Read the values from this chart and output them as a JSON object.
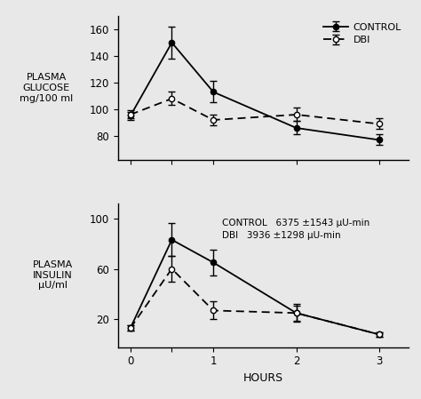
{
  "hours": [
    0,
    0.5,
    1,
    2,
    3
  ],
  "glucose_control_y": [
    95,
    150,
    113,
    86,
    77
  ],
  "glucose_control_err": [
    3,
    12,
    8,
    5,
    4
  ],
  "glucose_dbi_y": [
    96,
    108,
    92,
    96,
    89
  ],
  "glucose_dbi_err": [
    3,
    5,
    4,
    5,
    4
  ],
  "insulin_control_y": [
    13,
    83,
    65,
    25,
    8
  ],
  "insulin_control_err": [
    2,
    13,
    10,
    7,
    2
  ],
  "insulin_dbi_y": [
    13,
    60,
    27,
    25,
    8
  ],
  "insulin_dbi_err": [
    2,
    10,
    7,
    6,
    2
  ],
  "glucose_yticks": [
    80,
    100,
    120,
    140,
    160
  ],
  "glucose_ylim": [
    62,
    170
  ],
  "insulin_yticks": [
    20,
    60,
    100
  ],
  "insulin_ylim": [
    -2,
    112
  ],
  "xticks": [
    0,
    0.5,
    1,
    2,
    3
  ],
  "xticklabels": [
    "0",
    "",
    "1",
    "2",
    "3"
  ],
  "xlabel": "HOURS",
  "glucose_ylabel": "PLASMA\nGLUCOSE\nmg/100 ml",
  "insulin_ylabel": "PLASMA\nINSULIN\nμU/ml",
  "legend_control": "CONTROL",
  "legend_dbi": "DBI",
  "annotation_line1": "CONTROL   6375 ±1543 μU-min",
  "annotation_line2": "DBI   3936 ±1298 μU-min",
  "line_color": "black",
  "bg_color": "#e8e8e8"
}
